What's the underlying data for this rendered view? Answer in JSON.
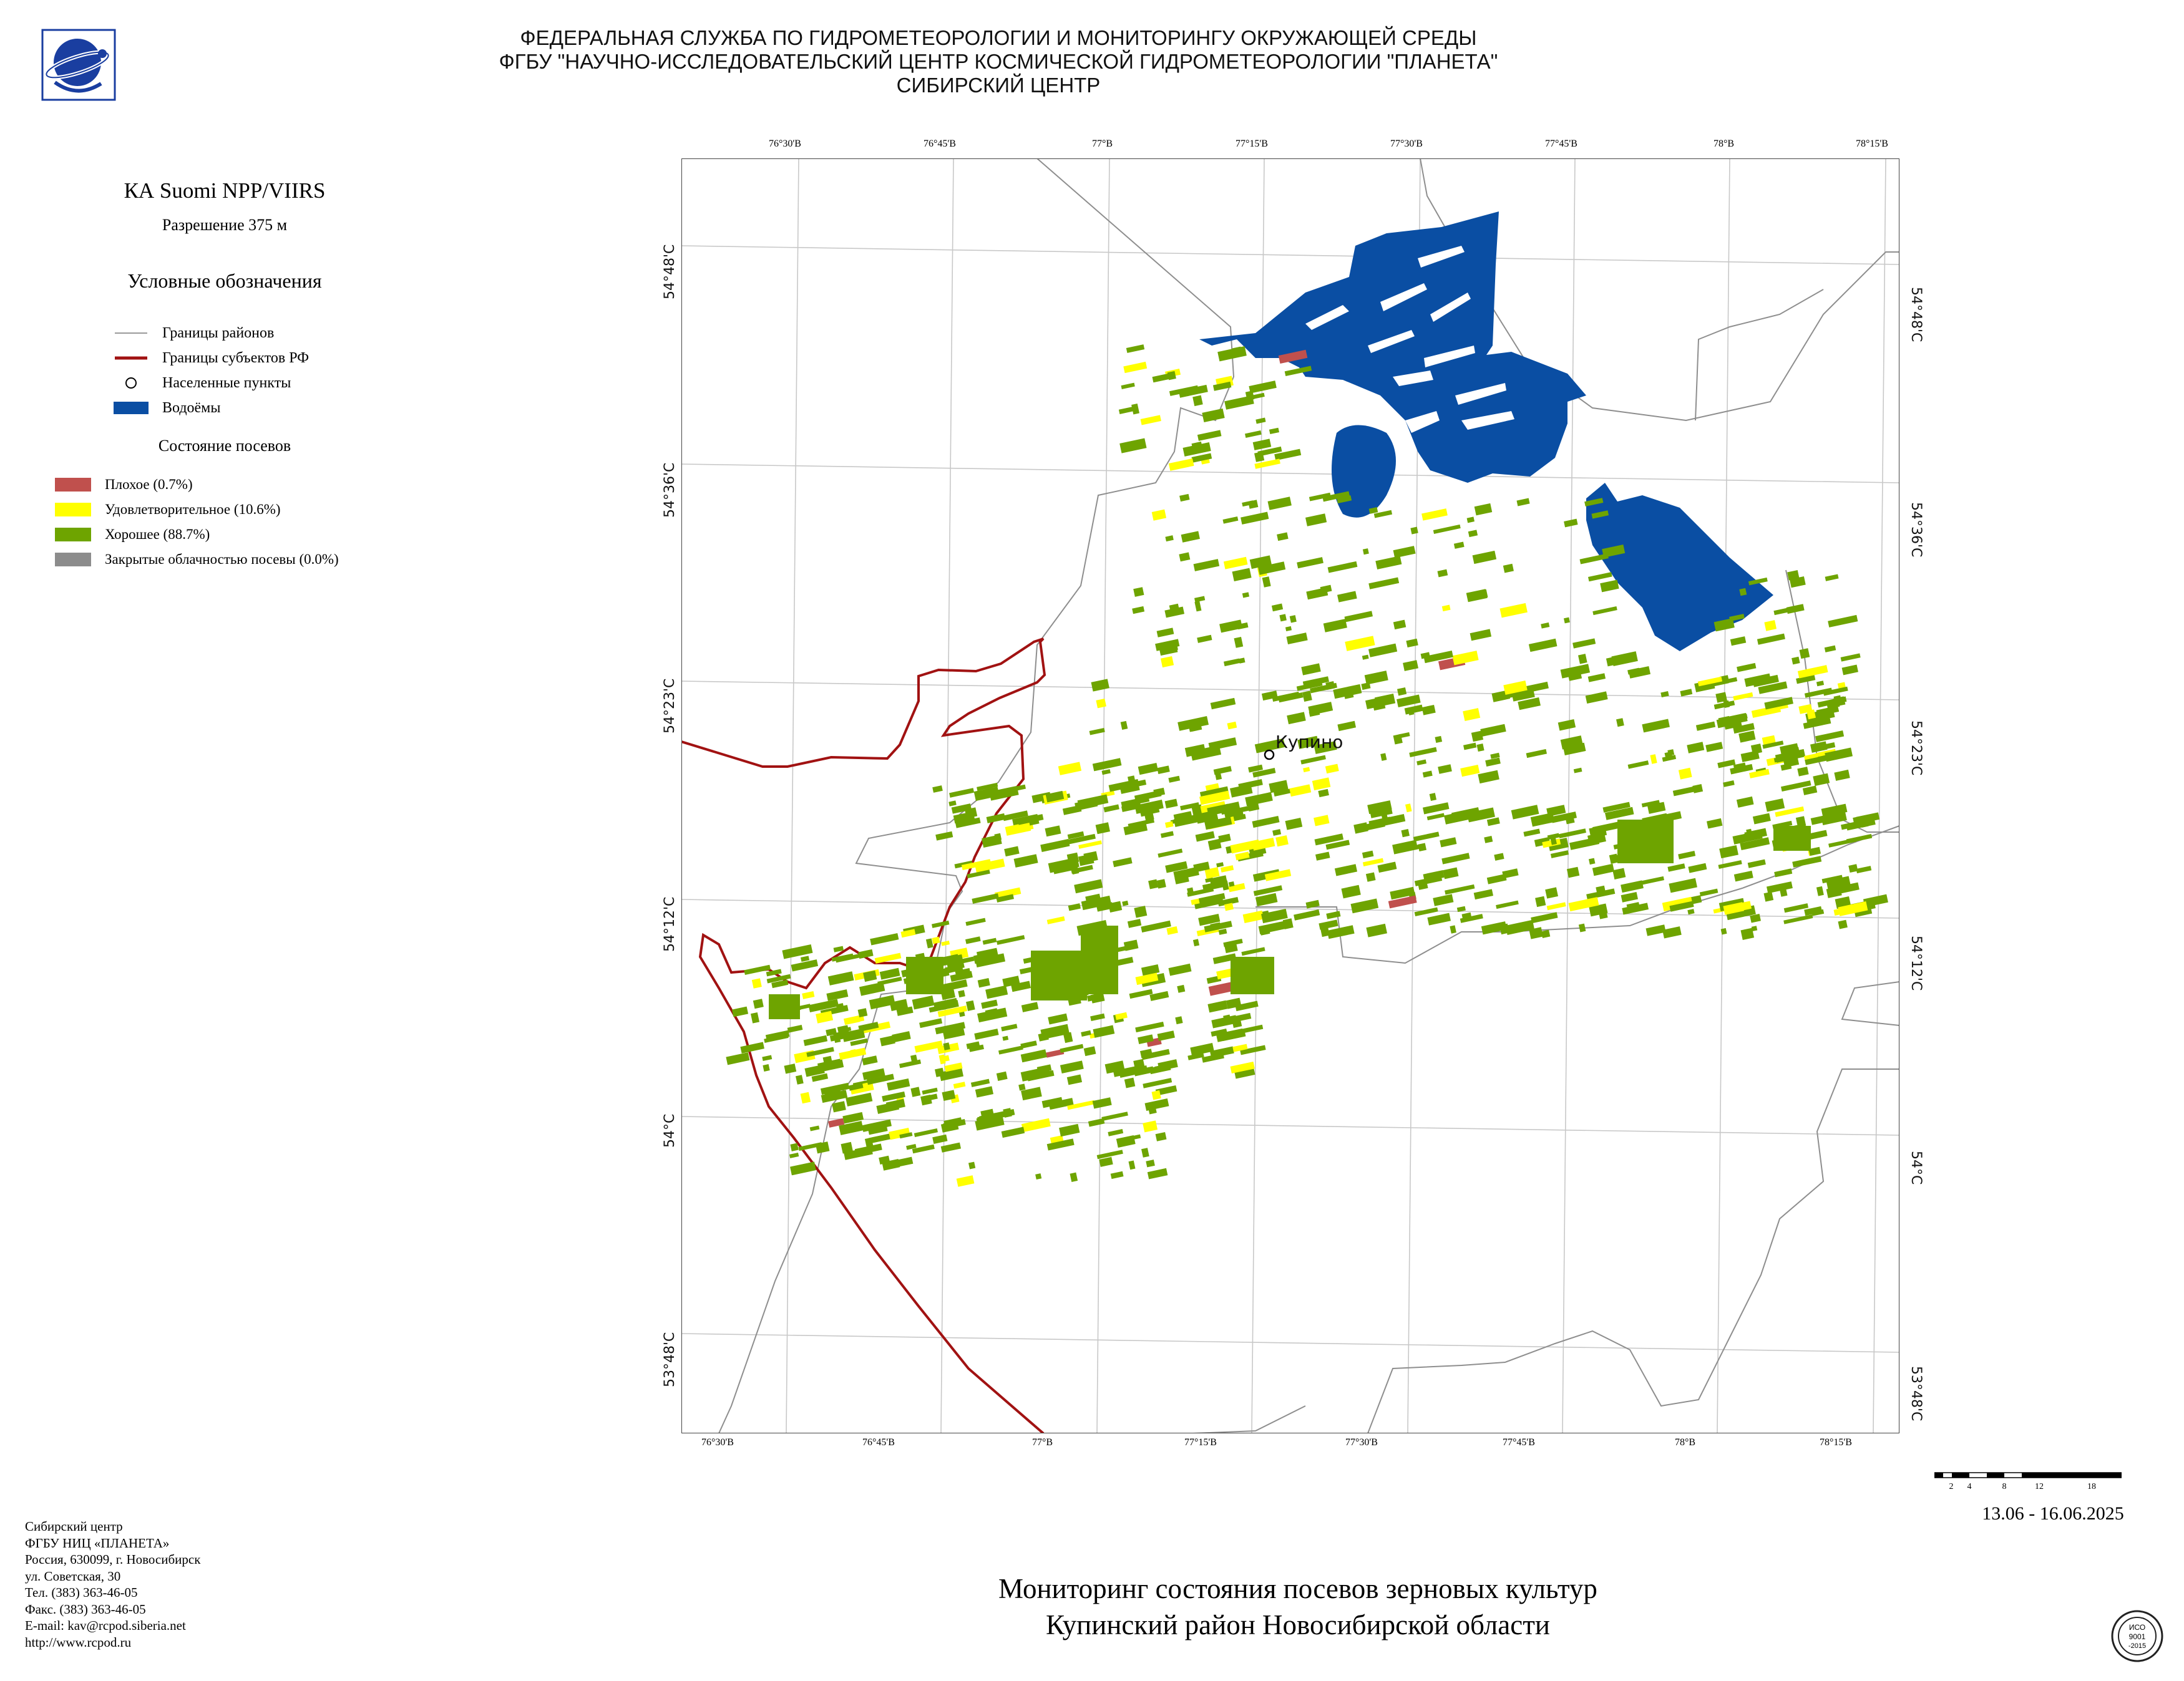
{
  "header": {
    "line1": "ФЕДЕРАЛЬНАЯ СЛУЖБА ПО ГИДРОМЕТЕОРОЛОГИИ И МОНИТОРИНГУ ОКРУЖАЮЩЕЙ СРЕДЫ",
    "line2": "ФГБУ \"НАУЧНО-ИССЛЕДОВАТЕЛЬСКИЙ ЦЕНТР КОСМИЧЕСКОЙ ГИДРОМЕТЕОРОЛОГИИ \"ПЛАНЕТА\"",
    "line3": "СИБИРСКИЙ ЦЕНТР"
  },
  "satellite": "КА Suomi NPP/VIIRS",
  "resolution": "Разрешение 375 м",
  "legend": {
    "title": "Условные обозначения",
    "items": [
      {
        "label": "Границы районов",
        "icon": "thin-gray-line",
        "color": "#9a9a9a"
      },
      {
        "label": "Границы субъектов РФ",
        "icon": "thick-red-line",
        "color": "#a11212"
      },
      {
        "label": "Населенные пункты",
        "icon": "circle-marker",
        "color": "#000000"
      },
      {
        "label": "Водоёмы",
        "icon": "blue-rectangle",
        "color": "#0a4ea3"
      }
    ]
  },
  "crop_state": {
    "title": "Состояние посевов",
    "items": [
      {
        "label": "Плохое (0.7%)",
        "color": "#c0504d"
      },
      {
        "label": "Удовлетворительное (10.6%)",
        "color": "#ffff00"
      },
      {
        "label": "Хорошее (88.7%)",
        "color": "#6ea400"
      },
      {
        "label": "Закрытые облачностью посевы (0.0%)",
        "color": "#8c8c8c"
      }
    ]
  },
  "map": {
    "top_ticks": [
      "76°30'В",
      "76°45'В",
      "77°В",
      "77°15'В",
      "77°30'В",
      "77°45'В",
      "78°В",
      "78°15'В"
    ],
    "bottom_ticks": [
      "76°30'В",
      "76°45'В",
      "77°В",
      "77°15'В",
      "77°30'В",
      "77°45'В",
      "78°В",
      "78°15'В"
    ],
    "left_ticks": [
      "54°48'С",
      "54°36'С",
      "54°23'С",
      "54°12'С",
      "54°С",
      "53°48'С"
    ],
    "right_ticks": [
      "54°48'С",
      "54°36'С",
      "54°23'С",
      "54°12'С",
      "54°С",
      "53°48'С"
    ],
    "settlement": "Купино",
    "water_color": "#0a4ea3",
    "good_color": "#6ea400",
    "fair_color": "#ffff00",
    "poor_color": "#c0504d"
  },
  "scale_bar": {
    "labels": [
      "2",
      "4",
      "8",
      "12",
      "18"
    ],
    "unit": "км"
  },
  "date": "13.06 - 16.06.2025",
  "footer": {
    "lines": [
      "Сибирский центр",
      "ФГБУ НИЦ «ПЛАНЕТА»",
      "Россия, 630099, г. Новосибирск",
      "ул. Советская, 30",
      "Тел. (383) 363-46-05",
      "Факс. (383) 363-46-05",
      "E-mail: kav@rcpod.siberia.net",
      "http://www.rcpod.ru"
    ]
  },
  "title": {
    "line1": "Мониторинг состояния посевов зерновых культур",
    "line2": "Купинский район Новосибирской области"
  },
  "iso_badge": {
    "lines": [
      "ИСО",
      "9001",
      "-2015"
    ]
  }
}
